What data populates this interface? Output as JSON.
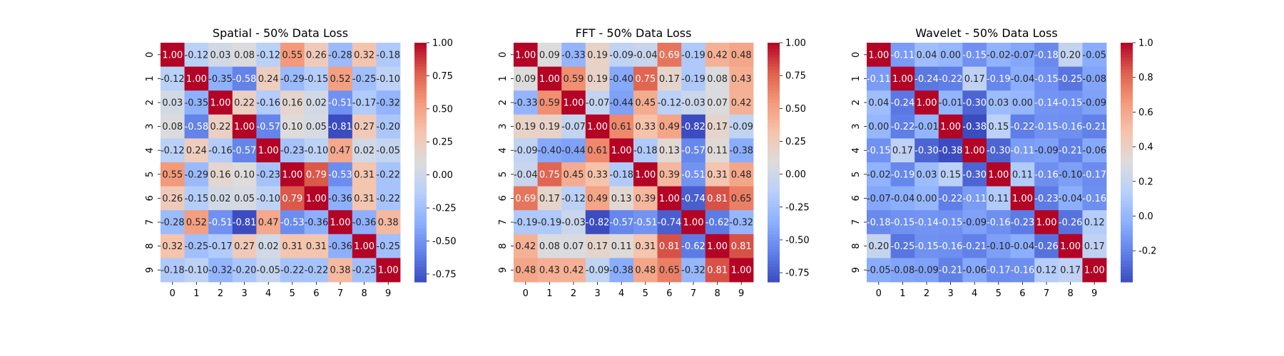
{
  "chart_data": [
    {
      "type": "heatmap",
      "title": "Spatial - 50% Data Loss",
      "x_ticks": [
        "0",
        "1",
        "2",
        "3",
        "4",
        "5",
        "6",
        "7",
        "8",
        "9"
      ],
      "y_ticks": [
        "0",
        "1",
        "2",
        "3",
        "4",
        "5",
        "6",
        "7",
        "8",
        "9"
      ],
      "colormap": "coolwarm",
      "vmin": -0.81,
      "vmax": 1.0,
      "colorbar_ticks": [
        "-0.75",
        "-0.50",
        "-0.25",
        "0.00",
        "0.25",
        "0.50",
        "0.75",
        "1.00"
      ],
      "colorbar_tick_values": [
        -0.75,
        -0.5,
        -0.25,
        0.0,
        0.25,
        0.5,
        0.75,
        1.0
      ],
      "values": [
        [
          1.0,
          -0.12,
          0.03,
          0.08,
          -0.12,
          0.55,
          0.26,
          -0.28,
          0.32,
          -0.18
        ],
        [
          -0.12,
          1.0,
          -0.35,
          -0.58,
          0.24,
          -0.29,
          -0.15,
          0.52,
          -0.25,
          -0.1
        ],
        [
          0.03,
          -0.35,
          1.0,
          0.22,
          -0.16,
          0.16,
          0.02,
          -0.51,
          -0.17,
          -0.32
        ],
        [
          0.08,
          -0.58,
          0.22,
          1.0,
          -0.57,
          0.1,
          0.05,
          -0.81,
          0.27,
          -0.2
        ],
        [
          -0.12,
          0.24,
          -0.16,
          -0.57,
          1.0,
          -0.23,
          -0.1,
          0.47,
          0.02,
          -0.05
        ],
        [
          0.55,
          -0.29,
          0.16,
          0.1,
          -0.23,
          1.0,
          0.79,
          -0.53,
          0.31,
          -0.22
        ],
        [
          0.26,
          -0.15,
          0.02,
          0.05,
          -0.1,
          0.79,
          1.0,
          -0.36,
          0.31,
          -0.22
        ],
        [
          -0.28,
          0.52,
          -0.51,
          -0.81,
          0.47,
          -0.53,
          -0.36,
          1.0,
          -0.36,
          0.38
        ],
        [
          0.32,
          -0.25,
          -0.17,
          0.27,
          0.02,
          0.31,
          0.31,
          -0.36,
          1.0,
          -0.25
        ],
        [
          -0.18,
          -0.1,
          -0.32,
          -0.2,
          -0.05,
          -0.22,
          -0.22,
          0.38,
          -0.25,
          1.0
        ]
      ]
    },
    {
      "type": "heatmap",
      "title": "FFT - 50% Data Loss",
      "x_ticks": [
        "0",
        "1",
        "2",
        "3",
        "4",
        "5",
        "6",
        "7",
        "8",
        "9"
      ],
      "y_ticks": [
        "0",
        "1",
        "2",
        "3",
        "4",
        "5",
        "6",
        "7",
        "8",
        "9"
      ],
      "colormap": "coolwarm",
      "vmin": -0.82,
      "vmax": 1.0,
      "colorbar_ticks": [
        "-0.75",
        "-0.50",
        "-0.25",
        "0.00",
        "0.25",
        "0.50",
        "0.75",
        "1.00"
      ],
      "colorbar_tick_values": [
        -0.75,
        -0.5,
        -0.25,
        0.0,
        0.25,
        0.5,
        0.75,
        1.0
      ],
      "values": [
        [
          1.0,
          0.09,
          -0.33,
          0.19,
          -0.09,
          -0.04,
          0.69,
          -0.19,
          0.42,
          0.48
        ],
        [
          0.09,
          1.0,
          0.59,
          0.19,
          -0.4,
          0.75,
          0.17,
          -0.19,
          0.08,
          0.43
        ],
        [
          -0.33,
          0.59,
          1.0,
          -0.07,
          -0.44,
          0.45,
          -0.12,
          -0.03,
          0.07,
          0.42
        ],
        [
          0.19,
          0.19,
          -0.07,
          1.0,
          0.61,
          0.33,
          0.49,
          -0.82,
          0.17,
          -0.09
        ],
        [
          -0.09,
          -0.4,
          -0.44,
          0.61,
          1.0,
          -0.18,
          0.13,
          -0.57,
          0.11,
          -0.38
        ],
        [
          -0.04,
          0.75,
          0.45,
          0.33,
          -0.18,
          1.0,
          0.39,
          -0.51,
          0.31,
          0.48
        ],
        [
          0.69,
          0.17,
          -0.12,
          0.49,
          0.13,
          0.39,
          1.0,
          -0.74,
          0.81,
          0.65
        ],
        [
          -0.19,
          -0.19,
          -0.03,
          -0.82,
          -0.57,
          -0.51,
          -0.74,
          1.0,
          -0.62,
          -0.32
        ],
        [
          0.42,
          0.08,
          0.07,
          0.17,
          0.11,
          0.31,
          0.81,
          -0.62,
          1.0,
          0.81
        ],
        [
          0.48,
          0.43,
          0.42,
          -0.09,
          -0.38,
          0.48,
          0.65,
          -0.32,
          0.81,
          1.0
        ]
      ]
    },
    {
      "type": "heatmap",
      "title": "Wavelet - 50% Data Loss",
      "x_ticks": [
        "0",
        "1",
        "2",
        "3",
        "4",
        "5",
        "6",
        "7",
        "8",
        "9"
      ],
      "y_ticks": [
        "0",
        "1",
        "2",
        "3",
        "4",
        "5",
        "6",
        "7",
        "8",
        "9"
      ],
      "colormap": "coolwarm",
      "vmin": -0.38,
      "vmax": 1.0,
      "colorbar_ticks": [
        "-0.2",
        "0.0",
        "0.2",
        "0.4",
        "0.6",
        "0.8",
        "1.0"
      ],
      "colorbar_tick_values": [
        -0.2,
        0.0,
        0.2,
        0.4,
        0.6,
        0.8,
        1.0
      ],
      "values": [
        [
          1.0,
          -0.11,
          0.04,
          0.0,
          -0.15,
          -0.02,
          -0.07,
          -0.18,
          0.2,
          -0.05
        ],
        [
          -0.11,
          1.0,
          -0.24,
          -0.22,
          0.17,
          -0.19,
          -0.04,
          -0.15,
          -0.25,
          -0.08
        ],
        [
          0.04,
          -0.24,
          1.0,
          -0.01,
          -0.3,
          0.03,
          0.0,
          -0.14,
          -0.15,
          -0.09
        ],
        [
          0.0,
          -0.22,
          -0.01,
          1.0,
          -0.38,
          0.15,
          -0.22,
          -0.15,
          -0.16,
          -0.21
        ],
        [
          -0.15,
          0.17,
          -0.3,
          -0.38,
          1.0,
          -0.3,
          -0.11,
          -0.09,
          -0.21,
          -0.06
        ],
        [
          -0.02,
          -0.19,
          0.03,
          0.15,
          -0.3,
          1.0,
          0.11,
          -0.16,
          -0.1,
          -0.17
        ],
        [
          -0.07,
          -0.04,
          0.0,
          -0.22,
          -0.11,
          0.11,
          1.0,
          -0.23,
          -0.04,
          -0.16
        ],
        [
          -0.18,
          -0.15,
          -0.14,
          -0.15,
          -0.09,
          -0.16,
          -0.23,
          1.0,
          -0.26,
          0.12
        ],
        [
          0.2,
          -0.25,
          -0.15,
          -0.16,
          -0.21,
          -0.1,
          -0.04,
          -0.26,
          1.0,
          0.17
        ],
        [
          -0.05,
          -0.08,
          -0.09,
          -0.21,
          -0.06,
          -0.17,
          -0.16,
          0.12,
          0.17,
          1.0
        ]
      ]
    }
  ]
}
